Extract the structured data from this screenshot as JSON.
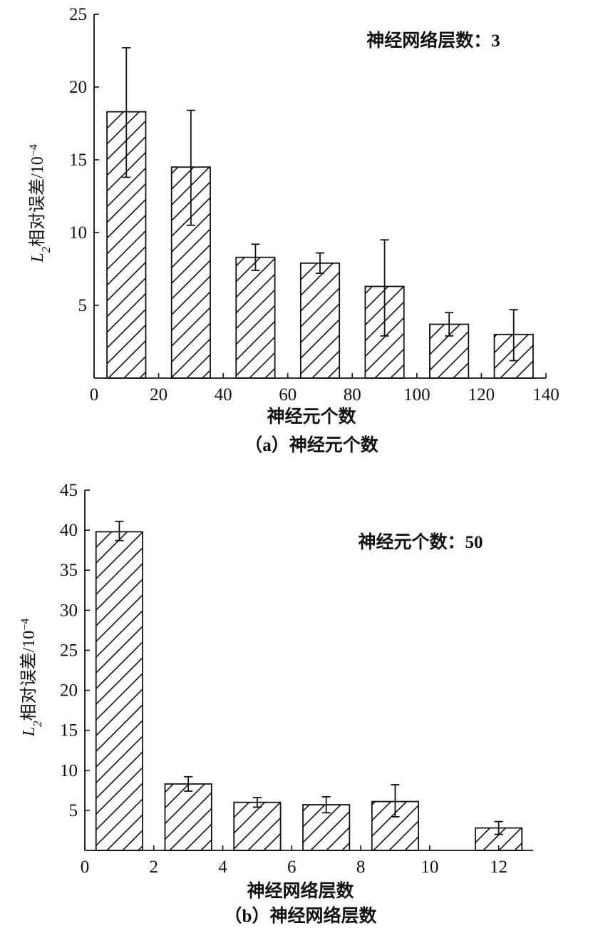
{
  "chart_data": [
    {
      "type": "bar",
      "caption": "（a）神经元个数",
      "annotation": "神经网络层数：3",
      "xlabel": "神经元个数",
      "ylabel_pre": "L",
      "ylabel_sub": "2",
      "ylabel_post": "相对误差/10",
      "ylabel_sup": "−4",
      "xlim": [
        0,
        140
      ],
      "ylim": [
        0,
        25
      ],
      "xticks": [
        "0",
        "20",
        "40",
        "60",
        "80",
        "100",
        "120",
        "140"
      ],
      "yticks": [
        "5",
        "10",
        "15",
        "20",
        "25"
      ],
      "bar_width": 12,
      "hatch": "diagonal",
      "bars": [
        {
          "x": 10,
          "value": 18.3,
          "err_low": 13.8,
          "err_high": 22.7
        },
        {
          "x": 30,
          "value": 14.5,
          "err_low": 10.5,
          "err_high": 18.4
        },
        {
          "x": 50,
          "value": 8.3,
          "err_low": 7.4,
          "err_high": 9.2
        },
        {
          "x": 70,
          "value": 7.9,
          "err_low": 7.2,
          "err_high": 8.6
        },
        {
          "x": 90,
          "value": 6.3,
          "err_low": 2.9,
          "err_high": 9.5
        },
        {
          "x": 110,
          "value": 3.7,
          "err_low": 2.9,
          "err_high": 4.5
        },
        {
          "x": 130,
          "value": 3.0,
          "err_low": 1.2,
          "err_high": 4.7
        }
      ]
    },
    {
      "type": "bar",
      "caption": "（b）神经网络层数",
      "annotation": "神经元个数：50",
      "xlabel": "神经网络层数",
      "ylabel_pre": "L",
      "ylabel_sub": "2",
      "ylabel_post": "相对误差/10",
      "ylabel_sup": "−4",
      "xlim": [
        0,
        13
      ],
      "ylim": [
        0,
        45
      ],
      "xticks": [
        "0",
        "2",
        "4",
        "6",
        "8",
        "10",
        "12"
      ],
      "yticks": [
        "5",
        "10",
        "15",
        "20",
        "25",
        "30",
        "35",
        "40",
        "45"
      ],
      "bar_width": 1.35,
      "hatch": "diagonal",
      "bars": [
        {
          "x": 1,
          "value": 39.8,
          "err_low": 38.7,
          "err_high": 41.1
        },
        {
          "x": 3,
          "value": 8.3,
          "err_low": 7.4,
          "err_high": 9.2
        },
        {
          "x": 5,
          "value": 6.0,
          "err_low": 5.4,
          "err_high": 6.6
        },
        {
          "x": 7,
          "value": 5.7,
          "err_low": 4.7,
          "err_high": 6.7
        },
        {
          "x": 9,
          "value": 6.1,
          "err_low": 4.2,
          "err_high": 8.2
        },
        {
          "x": 12,
          "value": 2.8,
          "err_low": 2.0,
          "err_high": 3.6
        }
      ]
    }
  ]
}
